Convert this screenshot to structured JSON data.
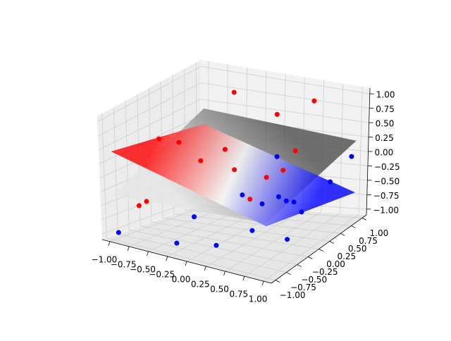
{
  "chart_data": {
    "type": "scatter3d",
    "xlim": [
      -1.1,
      1.1
    ],
    "ylim": [
      -1.1,
      1.1
    ],
    "zlim": [
      -1.1,
      1.1
    ],
    "xticks": [
      {
        "value": -1,
        "label": "−1.00"
      },
      {
        "value": -0.75,
        "label": "−0.75"
      },
      {
        "value": -0.5,
        "label": "−0.50"
      },
      {
        "value": -0.25,
        "label": "−0.25"
      },
      {
        "value": 0,
        "label": "0.00"
      },
      {
        "value": 0.25,
        "label": "0.25"
      },
      {
        "value": 0.5,
        "label": "0.50"
      },
      {
        "value": 0.75,
        "label": "0.75"
      },
      {
        "value": 1,
        "label": "1.00"
      }
    ],
    "yticks": [
      {
        "value": -1,
        "label": "−1.00"
      },
      {
        "value": -0.75,
        "label": "−0.75"
      },
      {
        "value": -0.5,
        "label": "−0.50"
      },
      {
        "value": -0.25,
        "label": "−0.25"
      },
      {
        "value": 0,
        "label": "0.00"
      },
      {
        "value": 0.25,
        "label": "0.25"
      },
      {
        "value": 0.5,
        "label": "0.50"
      },
      {
        "value": 0.75,
        "label": "0.75"
      },
      {
        "value": 1,
        "label": "1.00"
      }
    ],
    "zticks": [
      {
        "value": -1,
        "label": "−1.00"
      },
      {
        "value": -0.75,
        "label": "−0.75"
      },
      {
        "value": -0.5,
        "label": "−0.50"
      },
      {
        "value": -0.25,
        "label": "−0.25"
      },
      {
        "value": 0,
        "label": "0.00"
      },
      {
        "value": 0.25,
        "label": "0.25"
      },
      {
        "value": 0.5,
        "label": "0.50"
      },
      {
        "value": 0.75,
        "label": "0.75"
      },
      {
        "value": 1,
        "label": "1.00"
      }
    ],
    "grid": true,
    "surfaces": [
      {
        "x": [
          -1,
          1
        ],
        "y": [
          -1,
          1
        ],
        "z": [
          [
            -0.31,
            -0.18
          ],
          [
            0.41,
            0.22
          ]
        ],
        "colors": [
          "#e6e6e6",
          "#4d4d4d"
        ]
      },
      {
        "x": [
          -1,
          1
        ],
        "y": [
          -1,
          1
        ],
        "z": [
          [
            0.46,
            -0.23
          ],
          [
            0.17,
            -0.67
          ]
        ],
        "colors": [
          "#ff0000",
          "#ffffff",
          "#0000ff"
        ]
      }
    ],
    "series": [
      {
        "color": "#ff0000",
        "x": [
          -0.3,
          0.2,
          0.5,
          -0.8,
          -0.6,
          0.5,
          0.0,
          0.3,
          0.4,
          0.2,
          -0.8,
          -0.9,
          -0.5,
          -0.3
        ],
        "y": [
          0.5,
          0.6,
          0.9,
          -0.3,
          -0.2,
          0.5,
          0.0,
          0.2,
          0.4,
          0.0,
          -0.6,
          -0.6,
          0.1,
          0.3
        ],
        "z": [
          1.0,
          0.7,
          0.85,
          0.45,
          0.4,
          0.2,
          0.0,
          -0.15,
          -0.1,
          -0.45,
          -0.5,
          -0.6,
          0.0,
          0.15
        ]
      },
      {
        "color": "#0000ff",
        "x": [
          -1.0,
          -0.3,
          0.1,
          0.8,
          1.0,
          0.9,
          0.7,
          0.6,
          0.5,
          0.4,
          0.2,
          0.3,
          0.4,
          -0.3,
          0.1
        ],
        "y": [
          -0.9,
          -0.8,
          -0.6,
          -0.2,
          0.9,
          0.6,
          0.3,
          0.3,
          0.3,
          0.3,
          0.6,
          0.1,
          -0.3,
          -0.4,
          0.0
        ],
        "z": [
          -1.0,
          -1.0,
          -1.0,
          -0.9,
          0.0,
          -0.3,
          -0.7,
          -0.55,
          -0.55,
          -0.5,
          0.0,
          -0.55,
          -0.8,
          -0.7,
          -0.4
        ]
      }
    ]
  }
}
